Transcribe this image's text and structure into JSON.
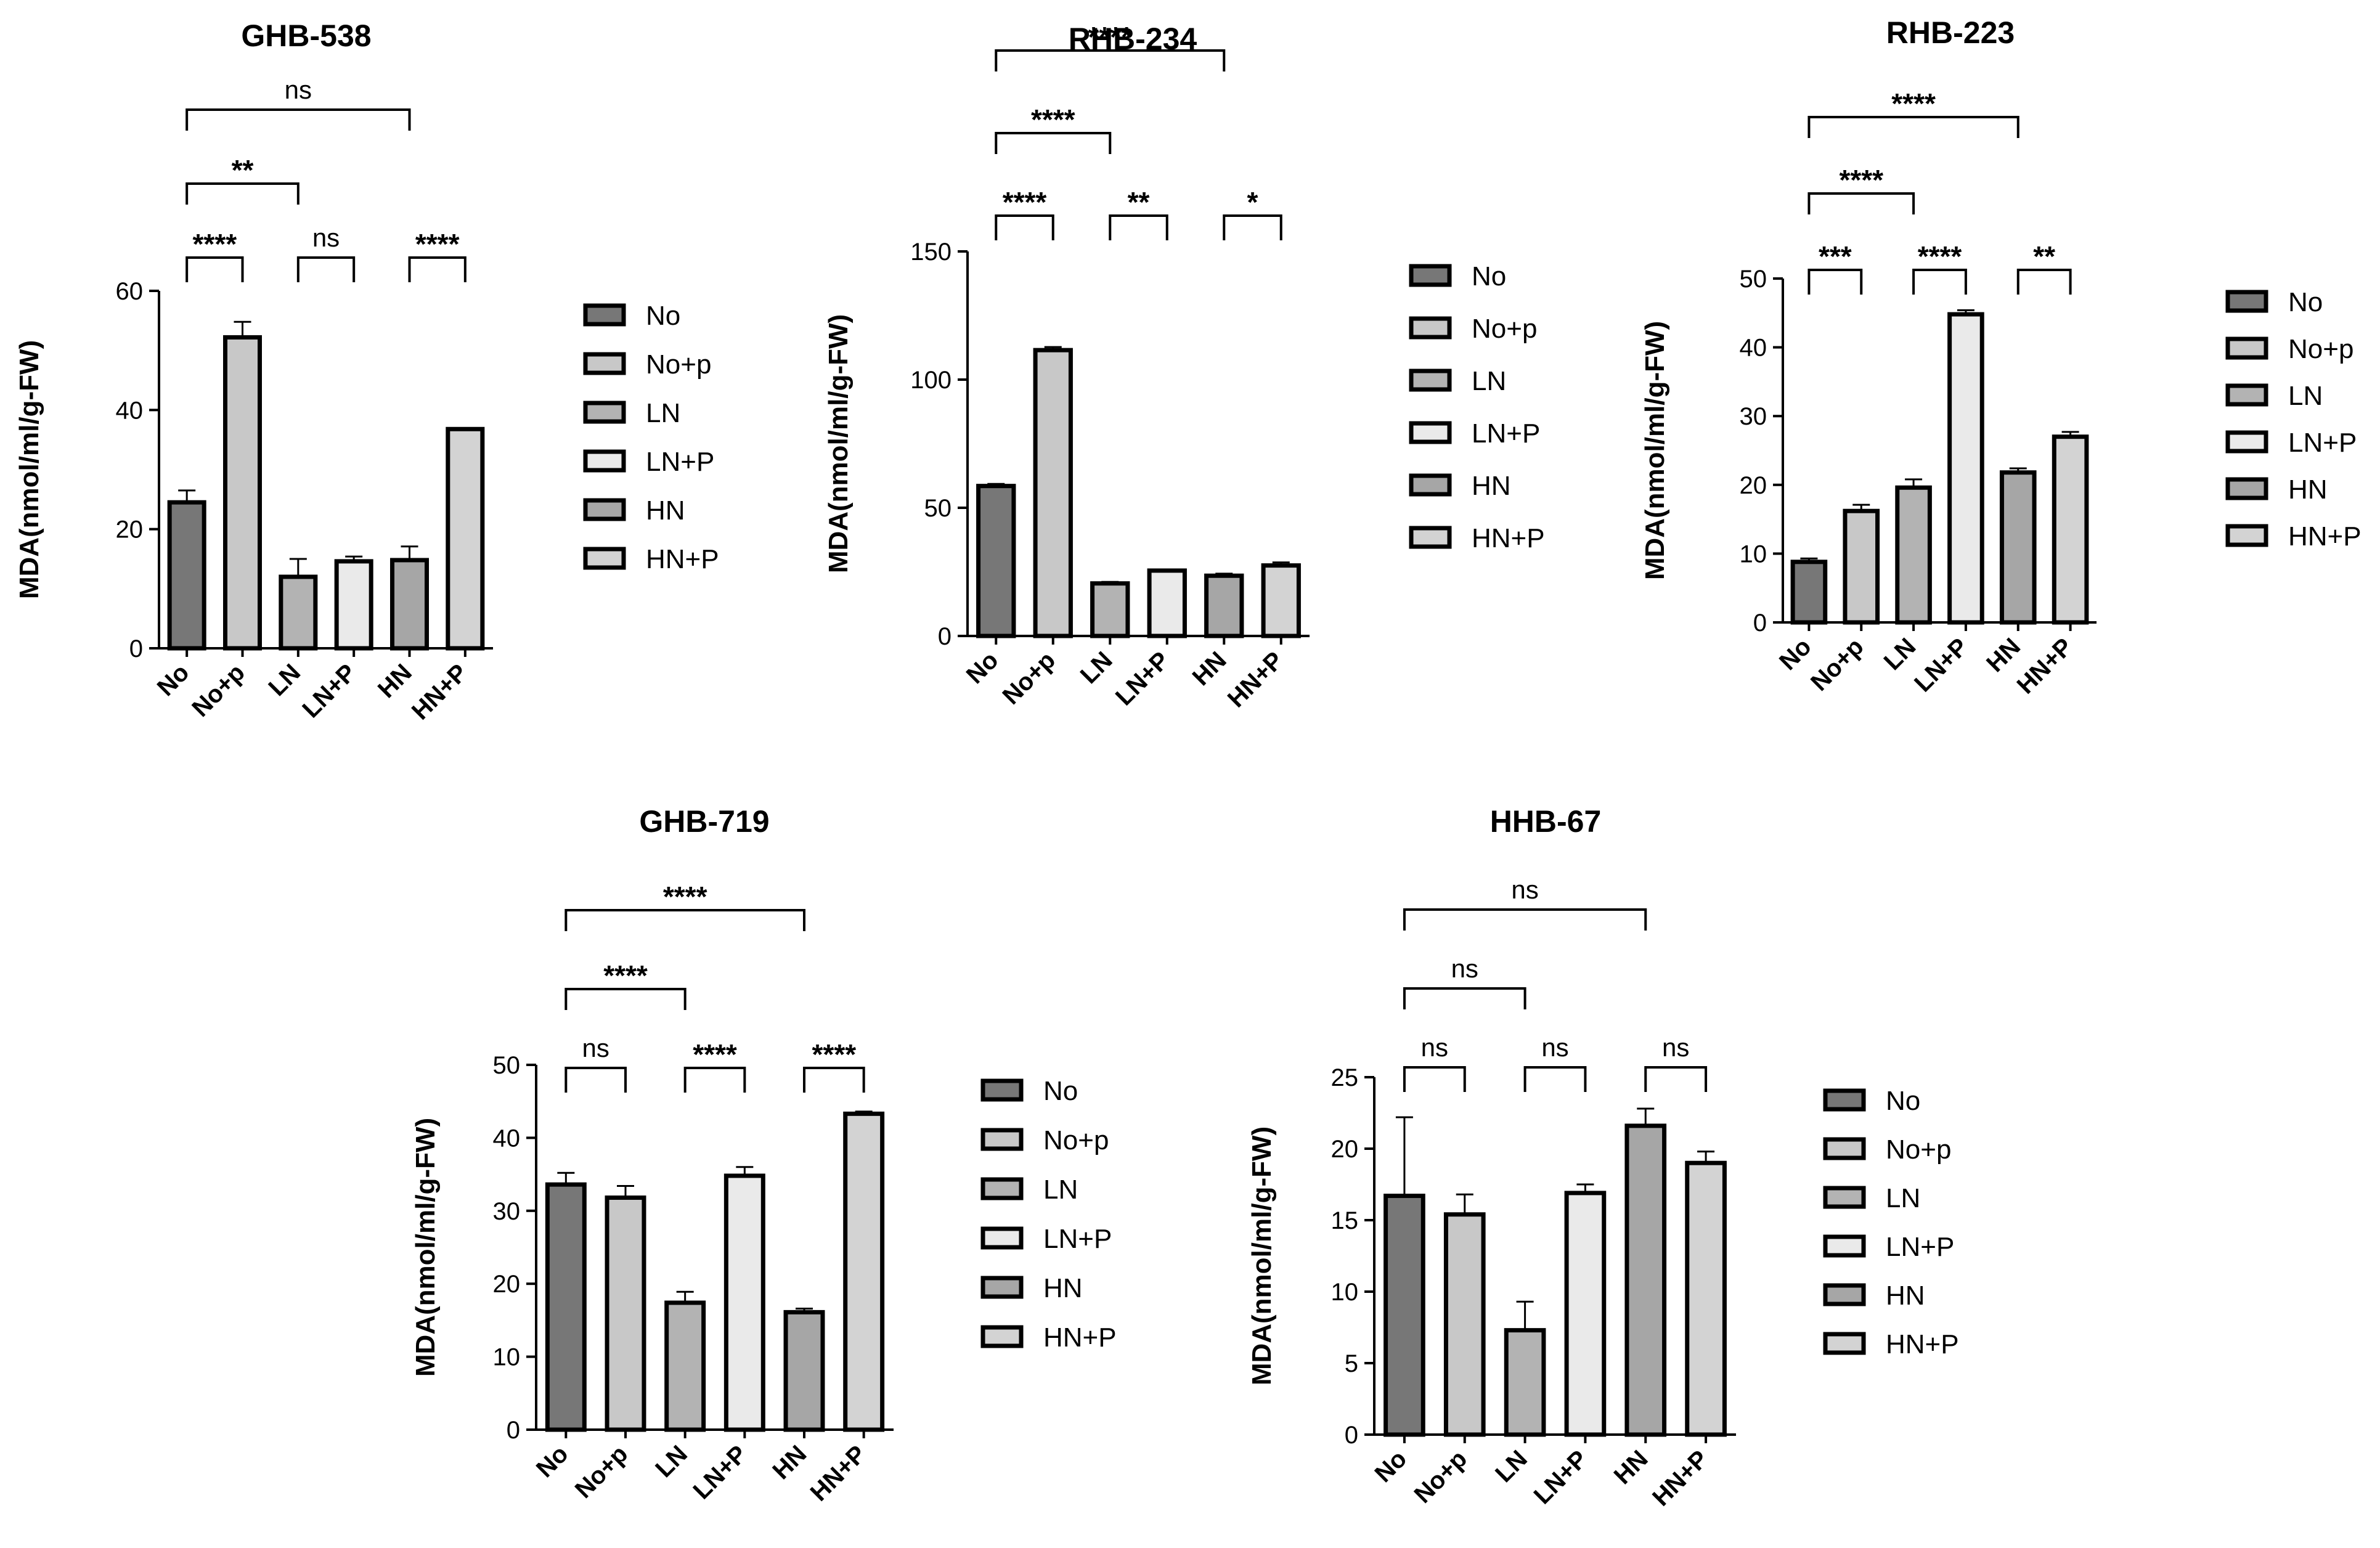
{
  "colors": {
    "No": "#777777",
    "No+p": "#c8c8c8",
    "LN": "#b3b3b3",
    "LN+P": "#eaeaea",
    "HN": "#a6a6a6",
    "HN+P": "#d3d3d3",
    "stroke": "#000000"
  },
  "chart_data": [
    {
      "type": "bar",
      "title": "GHB-538",
      "ylabel": "MDA(nmol/ml/g-FW)",
      "categories": [
        "No",
        "No+p",
        "LN",
        "LN+P",
        "HN",
        "HN+P"
      ],
      "values": [
        24.5,
        52.2,
        12.0,
        14.6,
        14.8,
        36.8
      ],
      "errors": [
        2.0,
        2.6,
        3.0,
        0.8,
        2.3,
        0.0
      ],
      "ylim": [
        0,
        60
      ],
      "yticks": [
        0,
        20,
        40,
        60
      ],
      "legend": [
        "No",
        "No+p",
        "LN",
        "LN+P",
        "HN",
        "HN+P"
      ],
      "legend_position": "right",
      "significance": [
        {
          "from": 0,
          "to": 1,
          "label": "****",
          "level": 0
        },
        {
          "from": 2,
          "to": 3,
          "label": "ns",
          "level": 0
        },
        {
          "from": 4,
          "to": 5,
          "label": "****",
          "level": 0
        },
        {
          "from": 0,
          "to": 2,
          "label": "**",
          "level": 1
        },
        {
          "from": 0,
          "to": 4,
          "label": "ns",
          "level": 2
        }
      ]
    },
    {
      "type": "bar",
      "title": "RHB-234",
      "ylabel": "MDA(nmol/ml/g-FW)",
      "categories": [
        "No",
        "No+p",
        "LN",
        "LN+P",
        "HN",
        "HN+P"
      ],
      "values": [
        58.5,
        111.5,
        20.5,
        25.5,
        23.5,
        27.5
      ],
      "errors": [
        0.8,
        1.2,
        0.6,
        0.3,
        0.8,
        1.2
      ],
      "ylim": [
        0,
        150
      ],
      "yticks": [
        0,
        50,
        100,
        150
      ],
      "legend": [
        "No",
        "No+p",
        "LN",
        "LN+P",
        "HN",
        "HN+P"
      ],
      "legend_position": "right",
      "significance": [
        {
          "from": 0,
          "to": 1,
          "label": "****",
          "level": 0
        },
        {
          "from": 2,
          "to": 3,
          "label": "**",
          "level": 0
        },
        {
          "from": 4,
          "to": 5,
          "label": "*",
          "level": 0
        },
        {
          "from": 0,
          "to": 2,
          "label": "****",
          "level": 1
        },
        {
          "from": 0,
          "to": 4,
          "label": "****",
          "level": 2
        }
      ]
    },
    {
      "type": "bar",
      "title": "RHB-223",
      "ylabel": "MDA(nmol/ml/g-FW)",
      "categories": [
        "No",
        "No+p",
        "LN",
        "LN+P",
        "HN",
        "HN+P"
      ],
      "values": [
        8.8,
        16.2,
        19.6,
        44.8,
        21.8,
        27.0
      ],
      "errors": [
        0.5,
        0.9,
        1.2,
        0.6,
        0.6,
        0.7
      ],
      "ylim": [
        0,
        50
      ],
      "yticks": [
        0,
        10,
        20,
        30,
        40,
        50
      ],
      "legend": [
        "No",
        "No+p",
        "LN",
        "LN+P",
        "HN",
        "HN+P"
      ],
      "legend_position": "right",
      "significance": [
        {
          "from": 0,
          "to": 1,
          "label": "***",
          "level": 0
        },
        {
          "from": 2,
          "to": 3,
          "label": "****",
          "level": 0
        },
        {
          "from": 4,
          "to": 5,
          "label": "**",
          "level": 0
        },
        {
          "from": 0,
          "to": 2,
          "label": "****",
          "level": 1
        },
        {
          "from": 0,
          "to": 4,
          "label": "****",
          "level": 2
        }
      ]
    },
    {
      "type": "bar",
      "title": "GHB-719",
      "ylabel": "MDA(nmol/ml/g-FW)",
      "categories": [
        "No",
        "No+p",
        "LN",
        "LN+P",
        "HN",
        "HN+P"
      ],
      "values": [
        33.6,
        31.8,
        17.4,
        34.8,
        16.1,
        43.3
      ],
      "errors": [
        1.6,
        1.6,
        1.5,
        1.2,
        0.5,
        0.3
      ],
      "ylim": [
        0,
        50
      ],
      "yticks": [
        0,
        10,
        20,
        30,
        40,
        50
      ],
      "legend": [
        "No",
        "No+p",
        "LN",
        "LN+P",
        "HN",
        "HN+P"
      ],
      "legend_position": "right",
      "significance": [
        {
          "from": 0,
          "to": 1,
          "label": "ns",
          "level": 0
        },
        {
          "from": 2,
          "to": 3,
          "label": "****",
          "level": 0
        },
        {
          "from": 4,
          "to": 5,
          "label": "****",
          "level": 0
        },
        {
          "from": 0,
          "to": 2,
          "label": "****",
          "level": 1
        },
        {
          "from": 0,
          "to": 4,
          "label": "****",
          "level": 2
        }
      ]
    },
    {
      "type": "bar",
      "title": "HHB-67",
      "ylabel": "MDA(nmol/ml/g-FW)",
      "categories": [
        "No",
        "No+p",
        "LN",
        "LN+P",
        "HN",
        "HN+P"
      ],
      "values": [
        16.7,
        15.4,
        7.3,
        16.9,
        21.6,
        19.0
      ],
      "errors": [
        5.5,
        1.4,
        2.0,
        0.6,
        1.2,
        0.8
      ],
      "ylim": [
        0,
        25
      ],
      "yticks": [
        0,
        5,
        10,
        15,
        20,
        25
      ],
      "legend": [
        "No",
        "No+p",
        "LN",
        "LN+P",
        "HN",
        "HN+P"
      ],
      "legend_position": "right",
      "significance": [
        {
          "from": 0,
          "to": 1,
          "label": "ns",
          "level": 0
        },
        {
          "from": 2,
          "to": 3,
          "label": "ns",
          "level": 0
        },
        {
          "from": 4,
          "to": 5,
          "label": "ns",
          "level": 0
        },
        {
          "from": 0,
          "to": 2,
          "label": "ns",
          "level": 1
        },
        {
          "from": 0,
          "to": 4,
          "label": "ns",
          "level": 2
        }
      ]
    }
  ]
}
